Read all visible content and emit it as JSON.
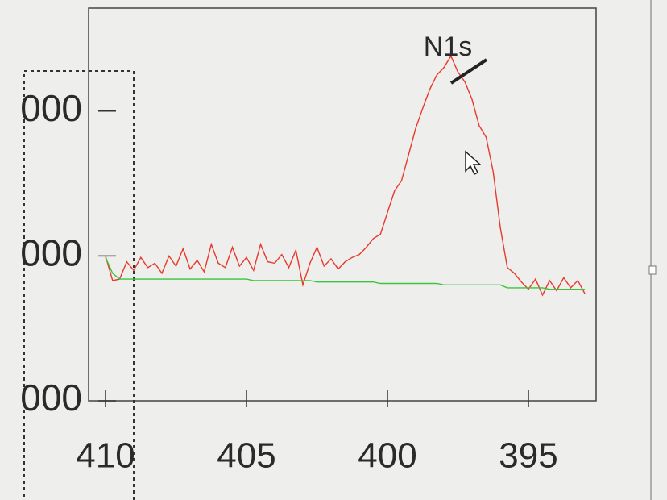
{
  "chart_data": {
    "type": "line",
    "annotation": "N1s",
    "x": [
      410.0,
      409.75,
      409.5,
      409.25,
      409.0,
      408.75,
      408.5,
      408.25,
      408.0,
      407.75,
      407.5,
      407.25,
      407.0,
      406.75,
      406.5,
      406.25,
      406.0,
      405.75,
      405.5,
      405.25,
      405.0,
      404.75,
      404.5,
      404.25,
      404.0,
      403.75,
      403.5,
      403.25,
      403.0,
      402.75,
      402.5,
      402.25,
      402.0,
      401.75,
      401.5,
      401.25,
      401.0,
      400.75,
      400.5,
      400.25,
      400.0,
      399.75,
      399.5,
      399.25,
      399.0,
      398.75,
      398.5,
      398.25,
      398.0,
      397.75,
      397.5,
      397.25,
      397.0,
      396.75,
      396.5,
      396.25,
      396.0,
      395.75,
      395.5,
      395.25,
      395.0,
      394.75,
      394.5,
      394.25,
      394.0,
      393.75,
      393.5,
      393.25,
      393.0
    ],
    "series": [
      {
        "color": "#e8392b",
        "values": [
          2000,
          1830,
          1840,
          1960,
          1900,
          1990,
          1920,
          1950,
          1880,
          2000,
          1930,
          2050,
          1910,
          1970,
          1890,
          2080,
          1950,
          1920,
          2060,
          1930,
          1990,
          1900,
          2080,
          1960,
          1950,
          2010,
          1920,
          2040,
          1800,
          1950,
          2060,
          1930,
          1980,
          1910,
          1960,
          1990,
          2010,
          2060,
          2120,
          2150,
          2300,
          2450,
          2520,
          2700,
          2880,
          3020,
          3150,
          3250,
          3300,
          3380,
          3270,
          3200,
          3080,
          2900,
          2820,
          2580,
          2200,
          1920,
          1880,
          1820,
          1770,
          1840,
          1730,
          1830,
          1760,
          1850,
          1780,
          1830,
          1740
        ]
      },
      {
        "color": "#3cc43c",
        "values": [
          1990,
          1880,
          1840,
          1840,
          1840,
          1840,
          1840,
          1840,
          1840,
          1840,
          1840,
          1840,
          1840,
          1840,
          1840,
          1840,
          1840,
          1840,
          1840,
          1840,
          1840,
          1830,
          1830,
          1830,
          1830,
          1830,
          1830,
          1830,
          1830,
          1830,
          1820,
          1820,
          1820,
          1820,
          1820,
          1820,
          1820,
          1820,
          1820,
          1810,
          1810,
          1810,
          1810,
          1810,
          1810,
          1810,
          1810,
          1810,
          1800,
          1800,
          1800,
          1800,
          1800,
          1800,
          1800,
          1800,
          1800,
          1780,
          1780,
          1780,
          1780,
          1780,
          1780,
          1770,
          1770,
          1770,
          1770,
          1770,
          1770
        ]
      }
    ],
    "xlim": [
      410.6,
      392.6
    ],
    "xticks": [
      410,
      405,
      400,
      395
    ],
    "ylim": [
      1000,
      3600
    ],
    "yticks": [
      {
        "value": 1000,
        "label": "000"
      },
      {
        "value": 2000,
        "label": "000"
      },
      {
        "value": 3000,
        "label": "000"
      }
    ]
  }
}
